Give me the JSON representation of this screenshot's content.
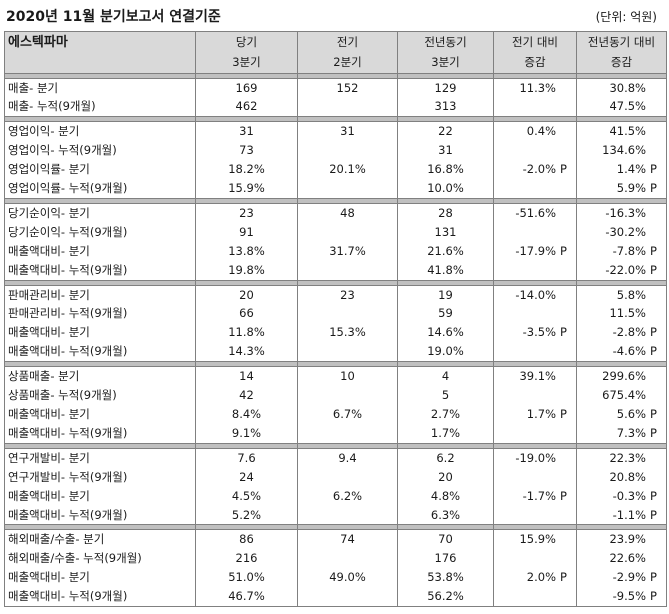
{
  "title": "2020년 11월 분기보고서 연결기준",
  "unit": "(단위: 억원)",
  "header": {
    "company": "에스텍파마",
    "col1": [
      "당기",
      "3분기"
    ],
    "col2": [
      "전기",
      "2분기"
    ],
    "col3": [
      "전년동기",
      "3분기"
    ],
    "col4": [
      "전기 대비",
      "증감"
    ],
    "col5": [
      "전년동기 대비",
      "증감"
    ]
  },
  "groups": [
    {
      "rows": [
        [
          "매출- 분기",
          "169",
          "152",
          "129",
          "11.3%",
          "",
          "30.8%",
          ""
        ],
        [
          "매출- 누적(9개월)",
          "462",
          "",
          "313",
          "",
          "",
          "47.5%",
          ""
        ]
      ]
    },
    {
      "rows": [
        [
          "영업이익- 분기",
          "31",
          "31",
          "22",
          "0.4%",
          "",
          "41.5%",
          ""
        ],
        [
          "영업이익- 누적(9개월)",
          "73",
          "",
          "31",
          "",
          "",
          "134.6%",
          ""
        ],
        [
          "영업이익률- 분기",
          "18.2%",
          "20.1%",
          "16.8%",
          "-2.0%",
          "P",
          "1.4%",
          "P"
        ],
        [
          "영업이익률- 누적(9개월)",
          "15.9%",
          "",
          "10.0%",
          "",
          "",
          "5.9%",
          "P"
        ]
      ]
    },
    {
      "rows": [
        [
          "당기순이익- 분기",
          "23",
          "48",
          "28",
          "-51.6%",
          "",
          "-16.3%",
          ""
        ],
        [
          "당기순이익- 누적(9개월)",
          "91",
          "",
          "131",
          "",
          "",
          "-30.2%",
          ""
        ],
        [
          "매출액대비- 분기",
          "13.8%",
          "31.7%",
          "21.6%",
          "-17.9%",
          "P",
          "-7.8%",
          "P"
        ],
        [
          "매출액대비- 누적(9개월)",
          "19.8%",
          "",
          "41.8%",
          "",
          "",
          "-22.0%",
          "P"
        ]
      ]
    },
    {
      "rows": [
        [
          "판매관리비- 분기",
          "20",
          "23",
          "19",
          "-14.0%",
          "",
          "5.8%",
          ""
        ],
        [
          "판매관리비- 누적(9개월)",
          "66",
          "",
          "59",
          "",
          "",
          "11.5%",
          ""
        ],
        [
          "매출액대비- 분기",
          "11.8%",
          "15.3%",
          "14.6%",
          "-3.5%",
          "P",
          "-2.8%",
          "P"
        ],
        [
          "매출액대비- 누적(9개월)",
          "14.3%",
          "",
          "19.0%",
          "",
          "",
          "-4.6%",
          "P"
        ]
      ]
    },
    {
      "rows": [
        [
          "상품매출- 분기",
          "14",
          "10",
          "4",
          "39.1%",
          "",
          "299.6%",
          ""
        ],
        [
          "상품매출- 누적(9개월)",
          "42",
          "",
          "5",
          "",
          "",
          "675.4%",
          ""
        ],
        [
          "매출액대비- 분기",
          "8.4%",
          "6.7%",
          "2.7%",
          "1.7%",
          "P",
          "5.6%",
          "P"
        ],
        [
          "매출액대비- 누적(9개월)",
          "9.1%",
          "",
          "1.7%",
          "",
          "",
          "7.3%",
          "P"
        ]
      ]
    },
    {
      "rows": [
        [
          "연구개발비- 분기",
          "7.6",
          "9.4",
          "6.2",
          "-19.0%",
          "",
          "22.3%",
          ""
        ],
        [
          "연구개발비- 누적(9개월)",
          "24",
          "",
          "20",
          "",
          "",
          "20.8%",
          ""
        ],
        [
          "매출액대비- 분기",
          "4.5%",
          "6.2%",
          "4.8%",
          "-1.7%",
          "P",
          "-0.3%",
          "P"
        ],
        [
          "매출액대비- 누적(9개월)",
          "5.2%",
          "",
          "6.3%",
          "",
          "",
          "-1.1%",
          "P"
        ]
      ]
    },
    {
      "rows": [
        [
          "해외매출/수출- 분기",
          "86",
          "74",
          "70",
          "15.9%",
          "",
          "23.9%",
          ""
        ],
        [
          "해외매출/수출- 누적(9개월)",
          "216",
          "",
          "176",
          "",
          "",
          "22.6%",
          ""
        ],
        [
          "매출액대비- 분기",
          "51.0%",
          "49.0%",
          "53.8%",
          "2.0%",
          "P",
          "-2.9%",
          "P"
        ],
        [
          "매출액대비- 누적(9개월)",
          "46.7%",
          "",
          "56.2%",
          "",
          "",
          "-9.5%",
          "P"
        ]
      ]
    }
  ]
}
